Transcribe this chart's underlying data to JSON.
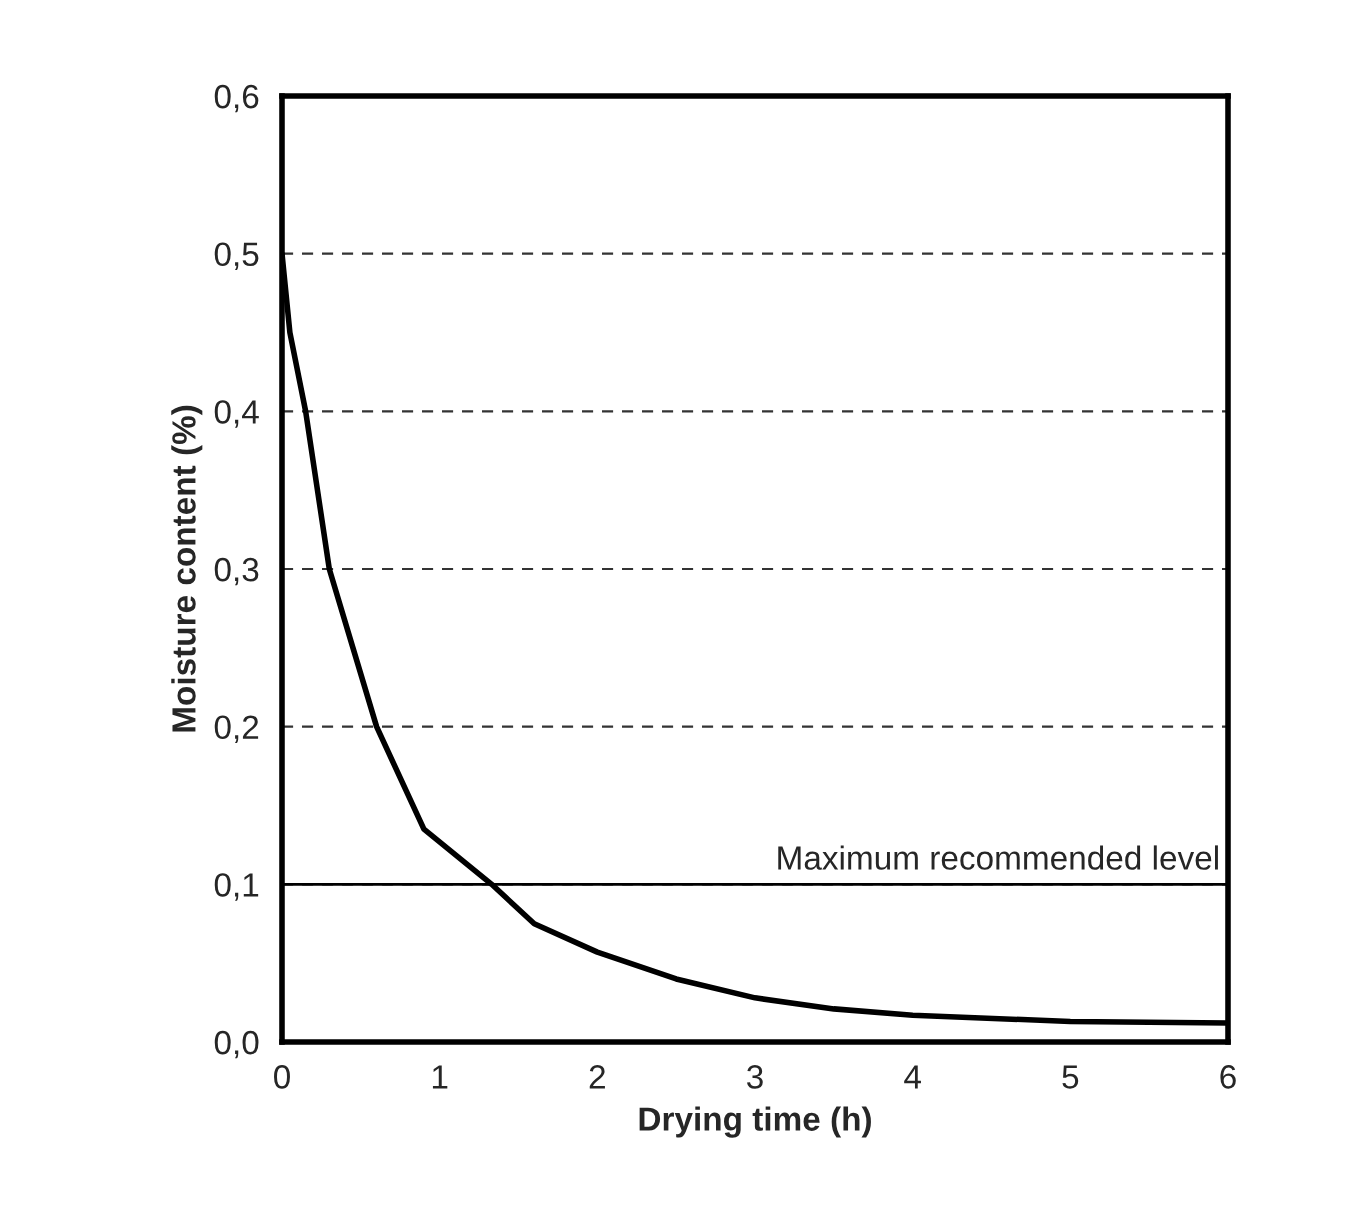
{
  "chart_data": {
    "type": "line",
    "xlabel": "Drying time (h)",
    "ylabel": "Moisture content (%)",
    "x": [
      0,
      0.05,
      0.15,
      0.3,
      0.45,
      0.6,
      0.9,
      1.33,
      1.6,
      2,
      2.5,
      3,
      3.5,
      4,
      5,
      6
    ],
    "series": [
      {
        "color": "#000000",
        "values": [
          0.5,
          0.45,
          0.4,
          0.3,
          0.25,
          0.2,
          0.135,
          0.1,
          0.075,
          0.057,
          0.04,
          0.028,
          0.021,
          0.017,
          0.013,
          0.012
        ]
      }
    ],
    "xlim": [
      0,
      6
    ],
    "xticks": [
      0,
      1,
      2,
      3,
      4,
      5,
      6
    ],
    "ylim": [
      0,
      0.6
    ],
    "yticks": [
      {
        "value": 0,
        "label": "0,0"
      },
      {
        "value": 0.1,
        "label": "0,1"
      },
      {
        "value": 0.2,
        "label": "0,2"
      },
      {
        "value": 0.3,
        "label": "0,3"
      },
      {
        "value": 0.4,
        "label": "0,4"
      },
      {
        "value": 0.5,
        "label": "0,5"
      },
      {
        "value": 0.6,
        "label": "0,6"
      }
    ],
    "grid": "y",
    "marker": "none",
    "line_style": "solid",
    "ref_lines": [
      {
        "axis": "y",
        "value": 0.1,
        "label": "Maximum recommended level",
        "color": "#000000",
        "line_style": "solid"
      }
    ]
  }
}
